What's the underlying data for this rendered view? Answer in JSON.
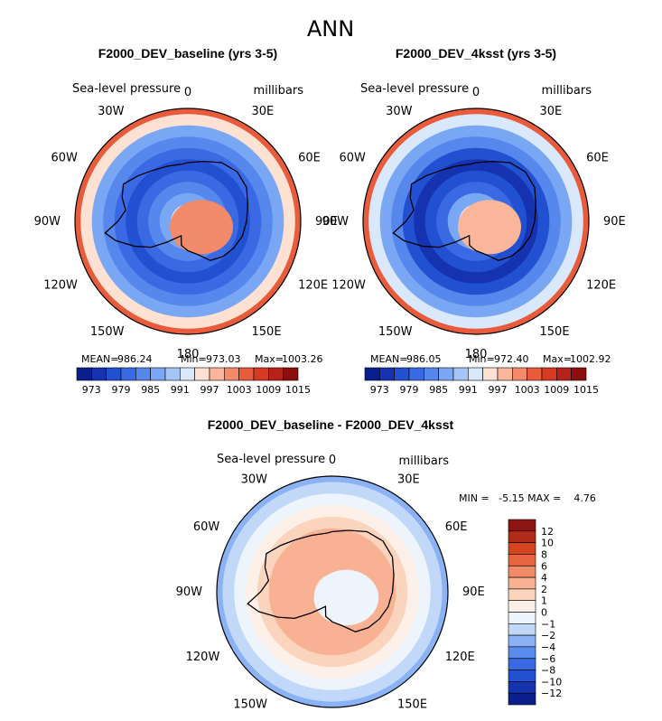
{
  "figure_title": "ANN",
  "colors": {
    "main_scale": [
      "#0b1f8c",
      "#1533b0",
      "#2150d0",
      "#3a6ae3",
      "#5687ec",
      "#7aa7f4",
      "#a6c5f7",
      "#d9e8fa",
      "#fde1d2",
      "#f9b69b",
      "#f38b6b",
      "#e85c3c",
      "#d63a22",
      "#b6211a",
      "#8c0e0f"
    ],
    "diff_scale": [
      "#0b1f8c",
      "#1533b0",
      "#2150d0",
      "#3a6ae3",
      "#5a8cee",
      "#8ab2f5",
      "#c2d8f8",
      "#eef4fc",
      "#fdf0e8",
      "#fbd4bd",
      "#f8b192",
      "#f18b68",
      "#e7663f",
      "#d5431f",
      "#b12b18",
      "#8c1412"
    ],
    "land_outline": "#000000"
  },
  "chart_data": [
    {
      "type": "heatmap",
      "name": "baseline",
      "title": "F2000_DEV_baseline (yrs 3-5)",
      "variable": "Sea-level pressure",
      "units": "millibars",
      "lon_labels": [
        "0",
        "30E",
        "60E",
        "90E",
        "120E",
        "150E",
        "180",
        "150W",
        "120W",
        "90W",
        "60W",
        "30W"
      ],
      "stats": {
        "mean_label": "MEAN=",
        "mean": "986.24",
        "min_label": "Min=",
        "min": "973.03",
        "max_label": "Max=",
        "max": "1003.26"
      },
      "colorbar_ticks": [
        "973",
        "979",
        "985",
        "991",
        "997",
        "1003",
        "1009",
        "1015"
      ],
      "center_value": 1000,
      "ring_values": [
        1000,
        993,
        987,
        982,
        979,
        976,
        979,
        983,
        987,
        994,
        1004
      ]
    },
    {
      "type": "heatmap",
      "name": "4ksst",
      "title": "F2000_DEV_4ksst (yrs 3-5)",
      "variable": "Sea-level pressure",
      "units": "millibars",
      "lon_labels": [
        "0",
        "30E",
        "60E",
        "90E",
        "120E",
        "150E",
        "180",
        "150W",
        "120W",
        "90W",
        "60W",
        "30W"
      ],
      "stats": {
        "mean_label": "MEAN=",
        "mean": "986.05",
        "min_label": "Min=",
        "min": "972.40",
        "max_label": "Max=",
        "max": "1002.92"
      },
      "colorbar_ticks": [
        "973",
        "979",
        "985",
        "991",
        "997",
        "1003",
        "1009",
        "1015"
      ],
      "center_value": 999,
      "ring_values": [
        999,
        992,
        986,
        981,
        978,
        975,
        978,
        982,
        986,
        993,
        1004
      ]
    },
    {
      "type": "heatmap",
      "name": "difference",
      "title": "F2000_DEV_baseline - F2000_DEV_4ksst",
      "variable": "Sea-level pressure",
      "units": "millibars",
      "lon_labels": [
        "0",
        "30E",
        "60E",
        "90E",
        "120E",
        "150E",
        "180",
        "150W",
        "120W",
        "90W",
        "60W",
        "30W"
      ],
      "minmax_text": "MIN =   -5.15 MAX =    4.76",
      "colorbar_ticks": [
        "12",
        "10",
        "8",
        "6",
        "4",
        "2",
        "1",
        "0",
        "−1",
        "−2",
        "−4",
        "−6",
        "−8",
        "−10",
        "−12"
      ],
      "center_value": -0.5,
      "ring_values": [
        -0.5,
        1,
        2,
        3,
        3,
        2.5,
        1.5,
        0.5,
        -0.5,
        -2,
        -3
      ]
    }
  ]
}
